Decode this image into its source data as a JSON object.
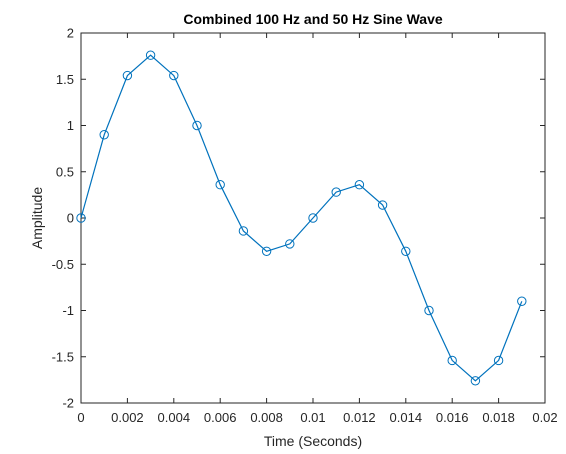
{
  "figure": {
    "background": "#ffffff"
  },
  "chart_data": {
    "type": "line",
    "title": "Combined 100 Hz and 50 Hz Sine Wave",
    "xlabel": "Time (Seconds)",
    "ylabel": "Amplitude",
    "xlim": [
      0,
      0.02
    ],
    "ylim": [
      -2,
      2
    ],
    "x_ticks": [
      0,
      0.002,
      0.004,
      0.006,
      0.008,
      0.01,
      0.012,
      0.014,
      0.016,
      0.018,
      0.02
    ],
    "x_tick_labels": [
      "0",
      "0.002",
      "0.004",
      "0.006",
      "0.008",
      "0.01",
      "0.012",
      "0.014",
      "0.016",
      "0.018",
      "0.02"
    ],
    "y_ticks": [
      -2,
      -1.5,
      -1,
      -0.5,
      0,
      0.5,
      1,
      1.5,
      2
    ],
    "y_tick_labels": [
      "-2",
      "-1.5",
      "-1",
      "-0.5",
      "0",
      "0.5",
      "1",
      "1.5",
      "2"
    ],
    "grid": false,
    "box": true,
    "marker": "circle",
    "line_color": "#0072bd",
    "series": [
      {
        "x": [
          0,
          0.001,
          0.002,
          0.003,
          0.004,
          0.005,
          0.006,
          0.007,
          0.008,
          0.009,
          0.01,
          0.011,
          0.012,
          0.013,
          0.014,
          0.015,
          0.016,
          0.017,
          0.018,
          0.019
        ],
        "y": [
          0,
          0.9,
          1.54,
          1.76,
          1.54,
          1.0,
          0.36,
          -0.14,
          -0.36,
          -0.28,
          0,
          0.28,
          0.36,
          0.14,
          -0.36,
          -1.0,
          -1.54,
          -1.76,
          -1.54,
          -0.9
        ]
      }
    ]
  }
}
